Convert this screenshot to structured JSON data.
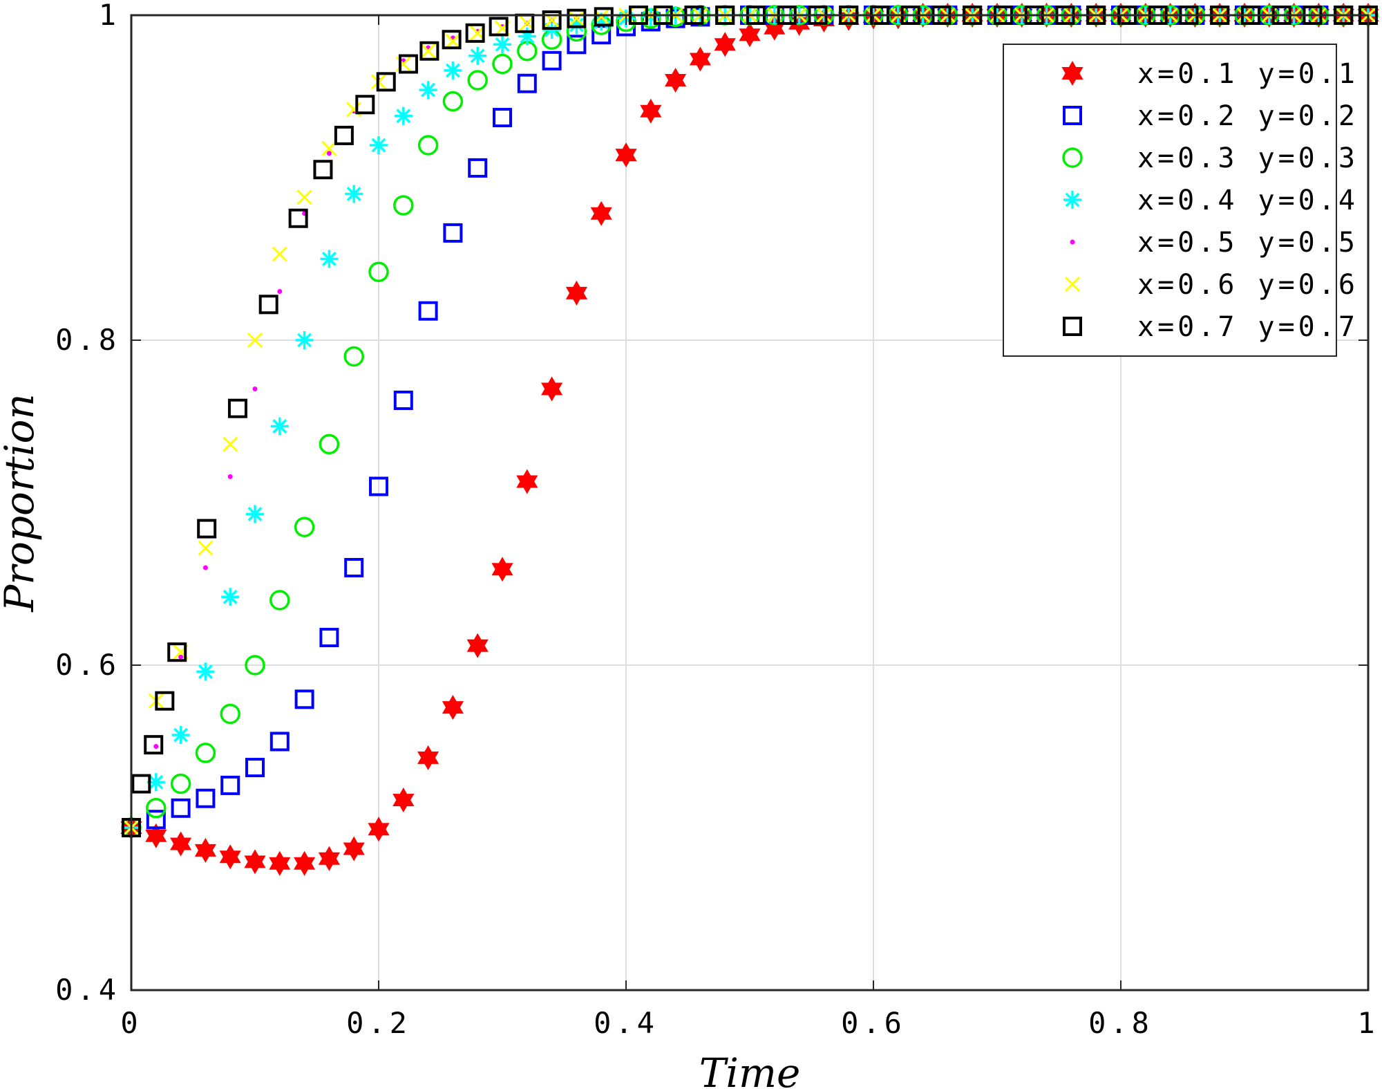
{
  "chart_data": {
    "type": "scatter",
    "title": "",
    "xlabel": "Time",
    "ylabel": "Proportion",
    "xlim": [
      0,
      1
    ],
    "ylim": [
      0.4,
      1
    ],
    "xticks": [
      0,
      0.2,
      0.4,
      0.6,
      0.8,
      1
    ],
    "yticks": [
      0.4,
      0.6,
      0.8,
      1
    ],
    "xtick_labels": [
      "0",
      "0.2",
      "0.4",
      "0.6",
      "0.8",
      "1"
    ],
    "ytick_labels": [
      "0.4",
      "0.6",
      "0.8",
      "1"
    ],
    "grid": true,
    "legend_position": "top-right",
    "series": [
      {
        "name": "x=0.1 y=0.1",
        "marker": "hexagram",
        "color": "#ff0000",
        "x": [
          0,
          0.02,
          0.04,
          0.06,
          0.08,
          0.1,
          0.12,
          0.14,
          0.16,
          0.18,
          0.2,
          0.22,
          0.24,
          0.26,
          0.28,
          0.3,
          0.32,
          0.34,
          0.36,
          0.38,
          0.4,
          0.42,
          0.44,
          0.46,
          0.48,
          0.5,
          0.52,
          0.54,
          0.56,
          0.58,
          0.6,
          0.62,
          0.64,
          0.66,
          0.68,
          0.7,
          0.72,
          0.74,
          0.76,
          0.78,
          0.8,
          0.82,
          0.84,
          0.86,
          0.88,
          0.9,
          0.92,
          0.94,
          0.96,
          0.98,
          1.0
        ],
        "y": [
          0.5,
          0.495,
          0.49,
          0.486,
          0.482,
          0.479,
          0.478,
          0.478,
          0.481,
          0.487,
          0.499,
          0.517,
          0.543,
          0.574,
          0.612,
          0.659,
          0.713,
          0.77,
          0.829,
          0.878,
          0.914,
          0.941,
          0.96,
          0.973,
          0.982,
          0.988,
          0.992,
          0.995,
          0.997,
          0.998,
          0.999,
          0.999,
          1.0,
          1.0,
          1.0,
          1.0,
          1.0,
          1.0,
          1.0,
          1.0,
          1.0,
          1.0,
          1.0,
          1.0,
          1.0,
          1.0,
          1.0,
          1.0,
          1.0,
          1.0,
          1.0
        ]
      },
      {
        "name": "x=0.2 y=0.2",
        "marker": "square",
        "color": "#0000ff",
        "x": [
          0,
          0.02,
          0.04,
          0.06,
          0.08,
          0.1,
          0.12,
          0.14,
          0.16,
          0.18,
          0.2,
          0.22,
          0.24,
          0.26,
          0.28,
          0.3,
          0.32,
          0.34,
          0.36,
          0.38,
          0.4,
          0.42,
          0.44,
          0.46,
          0.48,
          0.5,
          0.52,
          0.54,
          0.56,
          0.58,
          0.6,
          0.62,
          0.64,
          0.66,
          0.68,
          0.7,
          0.72,
          0.74,
          0.76,
          0.78,
          0.8,
          0.82,
          0.84,
          0.86,
          0.88,
          0.9,
          0.92,
          0.94,
          0.96,
          0.98,
          1.0
        ],
        "y": [
          0.5,
          0.505,
          0.512,
          0.518,
          0.526,
          0.537,
          0.553,
          0.579,
          0.617,
          0.66,
          0.71,
          0.763,
          0.818,
          0.866,
          0.906,
          0.937,
          0.958,
          0.972,
          0.982,
          0.988,
          0.993,
          0.996,
          0.998,
          0.999,
          1.0,
          1.0,
          1.0,
          1.0,
          1.0,
          1.0,
          1.0,
          1.0,
          1.0,
          1.0,
          1.0,
          1.0,
          1.0,
          1.0,
          1.0,
          1.0,
          1.0,
          1.0,
          1.0,
          1.0,
          1.0,
          1.0,
          1.0,
          1.0,
          1.0,
          1.0,
          1.0
        ]
      },
      {
        "name": "x=0.3 y=0.3",
        "marker": "circle",
        "color": "#00ee00",
        "x": [
          0,
          0.02,
          0.04,
          0.06,
          0.08,
          0.1,
          0.12,
          0.14,
          0.16,
          0.18,
          0.2,
          0.22,
          0.24,
          0.26,
          0.28,
          0.3,
          0.32,
          0.34,
          0.36,
          0.38,
          0.4,
          0.42,
          0.44,
          0.46,
          0.48,
          0.5,
          0.52,
          0.54,
          0.56,
          0.58,
          0.6,
          0.62,
          0.64,
          0.66,
          0.68,
          0.7,
          0.72,
          0.74,
          0.76,
          0.78,
          0.8,
          0.82,
          0.84,
          0.86,
          0.88,
          0.9,
          0.92,
          0.94,
          0.96,
          0.98,
          1.0
        ],
        "y": [
          0.5,
          0.512,
          0.527,
          0.546,
          0.57,
          0.6,
          0.64,
          0.685,
          0.736,
          0.79,
          0.842,
          0.883,
          0.92,
          0.947,
          0.96,
          0.97,
          0.978,
          0.985,
          0.99,
          0.994,
          0.996,
          0.998,
          0.999,
          1.0,
          1.0,
          1.0,
          1.0,
          1.0,
          1.0,
          1.0,
          1.0,
          1.0,
          1.0,
          1.0,
          1.0,
          1.0,
          1.0,
          1.0,
          1.0,
          1.0,
          1.0,
          1.0,
          1.0,
          1.0,
          1.0,
          1.0,
          1.0,
          1.0,
          1.0,
          1.0,
          1.0
        ]
      },
      {
        "name": "x=0.4 y=0.4",
        "marker": "asterisk",
        "color": "#00ffff",
        "x": [
          0,
          0.02,
          0.04,
          0.06,
          0.08,
          0.1,
          0.12,
          0.14,
          0.16,
          0.18,
          0.2,
          0.22,
          0.24,
          0.26,
          0.28,
          0.3,
          0.32,
          0.34,
          0.36,
          0.38,
          0.4,
          0.42,
          0.44,
          0.46,
          0.48,
          0.5,
          0.52,
          0.54,
          0.56,
          0.58,
          0.6,
          0.62,
          0.64,
          0.66,
          0.68,
          0.7,
          0.72,
          0.74,
          0.76,
          0.78,
          0.8,
          0.82,
          0.84,
          0.86,
          0.88,
          0.9,
          0.92,
          0.94,
          0.96,
          0.98,
          1.0
        ],
        "y": [
          0.5,
          0.528,
          0.557,
          0.596,
          0.642,
          0.693,
          0.747,
          0.8,
          0.85,
          0.89,
          0.92,
          0.938,
          0.954,
          0.966,
          0.975,
          0.982,
          0.987,
          0.991,
          0.994,
          0.996,
          0.998,
          0.999,
          1.0,
          1.0,
          1.0,
          1.0,
          1.0,
          1.0,
          1.0,
          1.0,
          1.0,
          1.0,
          1.0,
          1.0,
          1.0,
          1.0,
          1.0,
          1.0,
          1.0,
          1.0,
          1.0,
          1.0,
          1.0,
          1.0,
          1.0,
          1.0,
          1.0,
          1.0,
          1.0,
          1.0,
          1.0
        ]
      },
      {
        "name": "x=0.5 y=0.5",
        "marker": "point",
        "color": "#ff00ff",
        "x": [
          0,
          0.02,
          0.04,
          0.06,
          0.08,
          0.1,
          0.12,
          0.14,
          0.16,
          0.18,
          0.2,
          0.22,
          0.24,
          0.26,
          0.28,
          0.3,
          0.32,
          0.34,
          0.36,
          0.38,
          0.4,
          0.42,
          0.44,
          0.46,
          0.48,
          0.5,
          0.52,
          0.54,
          0.56,
          0.58,
          0.6,
          0.62,
          0.64,
          0.66,
          0.68,
          0.7,
          0.72,
          0.74,
          0.76,
          0.78,
          0.8,
          0.82,
          0.84,
          0.86,
          0.88,
          0.9,
          0.92,
          0.94,
          0.96,
          0.98,
          1.0
        ],
        "y": [
          0.5,
          0.55,
          0.605,
          0.66,
          0.716,
          0.77,
          0.83,
          0.878,
          0.915,
          0.941,
          0.96,
          0.972,
          0.98,
          0.986,
          0.99,
          0.993,
          0.995,
          0.997,
          0.998,
          0.999,
          1.0,
          1.0,
          1.0,
          1.0,
          1.0,
          1.0,
          1.0,
          1.0,
          1.0,
          1.0,
          1.0,
          1.0,
          1.0,
          1.0,
          1.0,
          1.0,
          1.0,
          1.0,
          1.0,
          1.0,
          1.0,
          1.0,
          1.0,
          1.0,
          1.0,
          1.0,
          1.0,
          1.0,
          1.0,
          1.0,
          1.0
        ]
      },
      {
        "name": "x=0.6 y=0.6",
        "marker": "x",
        "color": "#ffff00",
        "x": [
          0,
          0.02,
          0.04,
          0.06,
          0.08,
          0.1,
          0.12,
          0.14,
          0.16,
          0.18,
          0.2,
          0.22,
          0.24,
          0.26,
          0.28,
          0.3,
          0.32,
          0.34,
          0.36,
          0.38,
          0.4,
          0.42,
          0.44,
          0.46,
          0.48,
          0.5,
          0.52,
          0.54,
          0.56,
          0.58,
          0.6,
          0.62,
          0.64,
          0.66,
          0.68,
          0.7,
          0.72,
          0.74,
          0.76,
          0.78,
          0.8,
          0.82,
          0.84,
          0.86,
          0.88,
          0.9,
          0.92,
          0.94,
          0.96,
          0.98,
          1.0
        ],
        "y": [
          0.5,
          0.578,
          0.608,
          0.672,
          0.736,
          0.8,
          0.853,
          0.888,
          0.918,
          0.942,
          0.959,
          0.97,
          0.978,
          0.984,
          0.989,
          0.992,
          0.995,
          0.997,
          0.998,
          0.999,
          1.0,
          1.0,
          1.0,
          1.0,
          1.0,
          1.0,
          1.0,
          1.0,
          1.0,
          1.0,
          1.0,
          1.0,
          1.0,
          1.0,
          1.0,
          1.0,
          1.0,
          1.0,
          1.0,
          1.0,
          1.0,
          1.0,
          1.0,
          1.0,
          1.0,
          1.0,
          1.0,
          1.0,
          1.0,
          1.0,
          1.0
        ]
      },
      {
        "name": "x=0.7 y=0.7",
        "marker": "square",
        "color": "#000000",
        "x": [
          0,
          0.008,
          0.018,
          0.027,
          0.037,
          0.061,
          0.086,
          0.111,
          0.135,
          0.155,
          0.172,
          0.189,
          0.206,
          0.224,
          0.241,
          0.259,
          0.278,
          0.297,
          0.318,
          0.34,
          0.36,
          0.382,
          0.41,
          0.43,
          0.455,
          0.48,
          0.505,
          0.53,
          0.555,
          0.58,
          0.605,
          0.63,
          0.655,
          0.68,
          0.705,
          0.73,
          0.755,
          0.78,
          0.805,
          0.83,
          0.855,
          0.88,
          0.905,
          0.93,
          0.955,
          0.98,
          1.0
        ],
        "y": [
          0.5,
          0.527,
          0.551,
          0.578,
          0.608,
          0.684,
          0.758,
          0.822,
          0.875,
          0.905,
          0.926,
          0.945,
          0.959,
          0.97,
          0.978,
          0.985,
          0.989,
          0.993,
          0.995,
          0.997,
          0.998,
          0.999,
          1.0,
          1.0,
          1.0,
          1.0,
          1.0,
          1.0,
          1.0,
          1.0,
          1.0,
          1.0,
          1.0,
          1.0,
          1.0,
          1.0,
          1.0,
          1.0,
          1.0,
          1.0,
          1.0,
          1.0,
          1.0,
          1.0,
          1.0,
          1.0,
          1.0
        ]
      }
    ]
  }
}
